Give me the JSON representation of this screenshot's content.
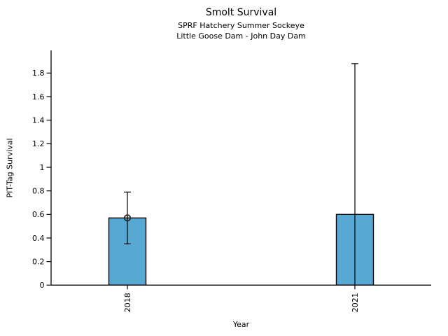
{
  "chart_data": {
    "type": "bar",
    "title": "Smolt Survival",
    "subtitle1": "SPRF Hatchery Summer Sockeye",
    "subtitle2": "Little Goose Dam - John Day Dam",
    "xlabel": "Year",
    "ylabel": "PIT-Tag Survival",
    "categories": [
      "2018",
      "2021"
    ],
    "values": [
      0.57,
      0.6
    ],
    "error_bars": [
      {
        "low": 0.35,
        "high": 0.79
      },
      {
        "low": 0.0,
        "high": 1.88
      }
    ],
    "point_marker": [
      true,
      false
    ],
    "yticks": [
      0,
      0.2,
      0.4,
      0.6,
      0.8,
      1,
      1.2,
      1.4,
      1.6,
      1.8
    ],
    "ylim": [
      0,
      2.0
    ],
    "grid": false,
    "legend": false,
    "bar_color": "#57a9d4",
    "bar_edge_color": "#000000",
    "axis_color": "#000000",
    "background": "#ffffff"
  }
}
